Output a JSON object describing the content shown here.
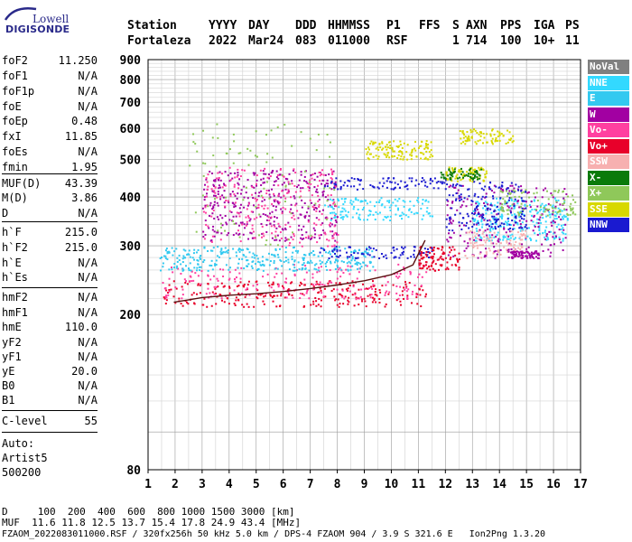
{
  "logo": {
    "line1": "Lowell",
    "line2": "DIGISONDE"
  },
  "header": {
    "labels": [
      "Station",
      "YYYY",
      "DAY",
      "DDD",
      "HHMMSS",
      "P1",
      "FFS",
      "S",
      "AXN",
      "PPS",
      "IGA",
      "PS"
    ],
    "values": [
      "Fortaleza",
      "2022",
      "Mar24",
      "083",
      "011000",
      "RSF",
      "1",
      "714",
      "100",
      "10+",
      "11"
    ]
  },
  "params": [
    {
      "key": "foF2",
      "value": "11.250"
    },
    {
      "key": "foF1",
      "value": "N/A"
    },
    {
      "key": "foF1p",
      "value": "N/A"
    },
    {
      "key": "foE",
      "value": "N/A"
    },
    {
      "key": "foEp",
      "value": "0.48"
    },
    {
      "key": "fxI",
      "value": "11.85"
    },
    {
      "key": "foEs",
      "value": "N/A"
    },
    {
      "key": "fmin",
      "value": "1.95"
    },
    {
      "key": "MUF(D)",
      "value": "43.39"
    },
    {
      "key": "M(D)",
      "value": "3.86"
    },
    {
      "key": "D",
      "value": "N/A"
    },
    {
      "key": "h`F",
      "value": "215.0"
    },
    {
      "key": "h`F2",
      "value": "215.0"
    },
    {
      "key": "h`E",
      "value": "N/A"
    },
    {
      "key": "h`Es",
      "value": "N/A"
    },
    {
      "key": "hmF2",
      "value": "N/A"
    },
    {
      "key": "hmF1",
      "value": "N/A"
    },
    {
      "key": "hmE",
      "value": "110.0"
    },
    {
      "key": "yF2",
      "value": "N/A"
    },
    {
      "key": "yF1",
      "value": "N/A"
    },
    {
      "key": "yE",
      "value": "20.0"
    },
    {
      "key": "B0",
      "value": "N/A"
    },
    {
      "key": "B1",
      "value": "N/A"
    },
    {
      "key": "C-level",
      "value": "55"
    }
  ],
  "autoscaling": {
    "line1": "Auto:",
    "line2": "Artist5",
    "line3": "500200"
  },
  "legend": [
    {
      "label": "NoVal",
      "color": "#808080"
    },
    {
      "label": "NNE",
      "color": "#33d9ff"
    },
    {
      "label": "E",
      "color": "#33c9f0"
    },
    {
      "label": "W",
      "color": "#a200a2"
    },
    {
      "label": "Vo-",
      "color": "#ff40a0"
    },
    {
      "label": "Vo+",
      "color": "#e8002a"
    },
    {
      "label": "SSW",
      "color": "#f7b0b0"
    },
    {
      "label": "X-",
      "color": "#0a7a0a"
    },
    {
      "label": "X+",
      "color": "#8fc85a"
    },
    {
      "label": "SSE",
      "color": "#d8d800"
    },
    {
      "label": "NNW",
      "color": "#1a1ad0"
    }
  ],
  "footer": {
    "distance_line": "D     100  200  400  600  800 1000 1500 3000 [km]",
    "muf_line": "MUF  11.6 11.8 12.5 13.7 15.4 17.8 24.9 43.4 [MHz]",
    "info_line": "FZAOM_2022083011000.RSF / 320fx256h 50 kHz 5.0 km / DPS-4 FZAOM 904 / 3.9 S 321.6 E   Ion2Png 1.3.20"
  },
  "chart_data": {
    "type": "scatter",
    "title": "",
    "xlabel": "",
    "ylabel": "",
    "xlim": [
      1,
      17
    ],
    "ylim": [
      80,
      900
    ],
    "x_ticks": [
      1,
      2,
      3,
      4,
      5,
      6,
      7,
      8,
      9,
      10,
      11,
      12,
      13,
      14,
      15,
      16,
      17
    ],
    "y_ticks": [
      80,
      200,
      300,
      400,
      500,
      600,
      700,
      800,
      900
    ],
    "y_scale": "log",
    "grid": true,
    "legend_position": "right",
    "trace_F_layer": {
      "name": "",
      "x": [
        1.95,
        2.5,
        3,
        4,
        5,
        6,
        7,
        8,
        9,
        10,
        10.8,
        11.25
      ],
      "y": [
        215,
        218,
        221,
        224,
        226,
        229,
        233,
        238,
        244,
        253,
        268,
        310
      ]
    },
    "clusters": [
      {
        "name": "Vo+",
        "x_range": [
          1.5,
          11.3
        ],
        "y_range": [
          210,
          245
        ],
        "density": 260
      },
      {
        "name": "Vo-",
        "x_range": [
          1.5,
          11.3
        ],
        "y_range": [
          220,
          270
        ],
        "density": 200
      },
      {
        "name": "E",
        "x_range": [
          1.4,
          9.3
        ],
        "y_range": [
          260,
          300
        ],
        "density": 320
      },
      {
        "name": "NNW",
        "x_range": [
          7.2,
          11.6
        ],
        "y_range": [
          280,
          300
        ],
        "density": 80
      },
      {
        "name": "W",
        "x_range": [
          3,
          8
        ],
        "y_range": [
          310,
          470
        ],
        "density": 360
      },
      {
        "name": "Vo-",
        "x_range": [
          3,
          8
        ],
        "y_range": [
          300,
          480
        ],
        "density": 220
      },
      {
        "name": "X+",
        "x_range": [
          2.5,
          8
        ],
        "y_range": [
          300,
          620
        ],
        "density": 90
      },
      {
        "name": "NNE",
        "x_range": [
          7.5,
          11.5
        ],
        "y_range": [
          350,
          400
        ],
        "density": 140
      },
      {
        "name": "NNW",
        "x_range": [
          7.5,
          12
        ],
        "y_range": [
          420,
          450
        ],
        "density": 90
      },
      {
        "name": "SSE",
        "x_range": [
          9,
          11.5
        ],
        "y_range": [
          500,
          560
        ],
        "density": 120
      },
      {
        "name": "SSE",
        "x_range": [
          12.5,
          14.5
        ],
        "y_range": [
          550,
          600
        ],
        "density": 80
      },
      {
        "name": "SSE",
        "x_range": [
          12,
          13.5
        ],
        "y_range": [
          440,
          480
        ],
        "density": 80
      },
      {
        "name": "X-",
        "x_range": [
          11.8,
          13.3
        ],
        "y_range": [
          445,
          475
        ],
        "density": 60
      },
      {
        "name": "NNE",
        "x_range": [
          13,
          16.5
        ],
        "y_range": [
          310,
          400
        ],
        "density": 260
      },
      {
        "name": "W",
        "x_range": [
          12,
          16.5
        ],
        "y_range": [
          280,
          430
        ],
        "density": 220
      },
      {
        "name": "NNW",
        "x_range": [
          12,
          15
        ],
        "y_range": [
          330,
          440
        ],
        "density": 160
      },
      {
        "name": "Vo+",
        "x_range": [
          11,
          12.5
        ],
        "y_range": [
          260,
          300
        ],
        "density": 100
      },
      {
        "name": "SSW",
        "x_range": [
          12.5,
          15
        ],
        "y_range": [
          280,
          330
        ],
        "density": 90
      },
      {
        "name": "X+",
        "x_range": [
          14,
          16.8
        ],
        "y_range": [
          360,
          420
        ],
        "density": 90
      },
      {
        "name": "W",
        "x_range": [
          14.3,
          15.5
        ],
        "y_range": [
          280,
          292
        ],
        "density": 70
      }
    ]
  }
}
